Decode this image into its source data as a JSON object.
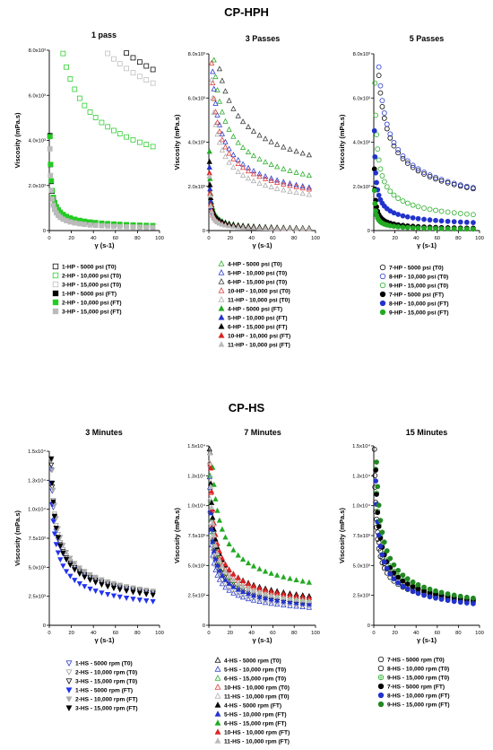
{
  "figure": {
    "sections": [
      {
        "id": "hph",
        "title": "CP-HPH"
      },
      {
        "id": "hs",
        "title": "CP-HS"
      }
    ]
  },
  "chart_data": [
    {
      "type": "scatter",
      "section": "CP-HPH",
      "title": "1 pass",
      "xlabel": "γ (s-1)",
      "ylabel": "Viscosity (mPa.s)",
      "xlim": [
        0,
        100
      ],
      "ylim": [
        0,
        8000
      ],
      "xticks": [
        0,
        20,
        40,
        60,
        80,
        100
      ],
      "xtick_labels": [
        "0",
        "20",
        "40",
        "60",
        "80",
        "100"
      ],
      "yticks": [
        0,
        2000,
        4000,
        6000,
        8000
      ],
      "ytick_labels": [
        "0",
        "2.0x10³",
        "4.0x10³",
        "6.0x10³",
        "8.0x10³"
      ],
      "grid": false,
      "legend_position": "bottom",
      "series": [
        {
          "name": "1-HP - 5000 psi (T0)",
          "marker": "square",
          "fill": "open",
          "color": "#000000",
          "A": 32000,
          "n": 0.67
        },
        {
          "name": "2-HP - 10,000 psi (T0)",
          "marker": "square",
          "fill": "open",
          "color": "#22cc22",
          "A": 20000,
          "n": 0.63
        },
        {
          "name": "3-HP - 15,000 psi (T0)",
          "marker": "square",
          "fill": "open",
          "color": "#bbbbbb",
          "A": 28000,
          "n": 0.68
        },
        {
          "name": "1-HP - 5000 psi (FT)",
          "marker": "square",
          "fill": "solid",
          "color": "#000000",
          "A": 3100,
          "n": 0.4
        },
        {
          "name": "2-HP - 10,000 psi (FT)",
          "marker": "square",
          "fill": "solid",
          "color": "#22cc22",
          "A": 3100,
          "n": 0.42
        },
        {
          "name": "3-HP - 15,000 psi (FT)",
          "marker": "square",
          "fill": "solid",
          "color": "#bbbbbb",
          "A": 2600,
          "n": 0.35
        }
      ]
    },
    {
      "type": "scatter",
      "section": "CP-HPH",
      "title": "3 Passes",
      "xlabel": "γ (s-1)",
      "ylabel": "Viscosity (mPa.s)",
      "xlim": [
        0,
        100
      ],
      "ylim": [
        0,
        8000
      ],
      "xticks": [
        0,
        20,
        40,
        60,
        80,
        100
      ],
      "xtick_labels": [
        "0",
        "20",
        "40",
        "60",
        "80",
        "100"
      ],
      "yticks": [
        0,
        2000,
        4000,
        6000,
        8000
      ],
      "ytick_labels": [
        "0",
        "2.0x10³",
        "4.0x10³",
        "6.0x10³",
        "8.0x10³"
      ],
      "grid": false,
      "legend_position": "bottom",
      "series": [
        {
          "name": "4-HP - 5000 psi (T0)",
          "marker": "triangle-up",
          "fill": "open",
          "color": "#22aa22",
          "A": 14000,
          "n": 0.62
        },
        {
          "name": "5-HP - 10,000 psi (T0)",
          "marker": "triangle-up",
          "fill": "open",
          "color": "#2233cc",
          "A": 12000,
          "n": 0.6
        },
        {
          "name": "6-HP - 15,000 psi (T0)",
          "marker": "triangle-up",
          "fill": "open",
          "color": "#333333",
          "A": 16000,
          "n": 0.66
        },
        {
          "name": "10-HP - 10,000 psi (T0)",
          "marker": "triangle-up",
          "fill": "open",
          "color": "#dd3333",
          "A": 11000,
          "n": 0.61
        },
        {
          "name": "11-HP - 10,000 psi (T0)",
          "marker": "triangle-up",
          "fill": "open",
          "color": "#aaaaaa",
          "A": 10000,
          "n": 0.6
        },
        {
          "name": "4-HP - 5000 psi (FT)",
          "marker": "triangle-up",
          "fill": "solid",
          "color": "#22aa22",
          "A": 2500,
          "n": 0.3
        },
        {
          "name": "5-HP - 10,000 psi (FT)",
          "marker": "triangle-up",
          "fill": "solid",
          "color": "#2233cc",
          "A": 2000,
          "n": 0.3
        },
        {
          "name": "6-HP - 15,000 psi (FT)",
          "marker": "triangle-up",
          "fill": "solid",
          "color": "#000000",
          "A": 2200,
          "n": 0.32
        },
        {
          "name": "10-HP - 10,000 psi (FT)",
          "marker": "triangle-up",
          "fill": "solid",
          "color": "#dd2222",
          "A": 1800,
          "n": 0.28
        },
        {
          "name": "11-HP - 10,000 psi (FT)",
          "marker": "triangle-up",
          "fill": "solid",
          "color": "#bbbbbb",
          "A": 1700,
          "n": 0.28
        }
      ]
    },
    {
      "type": "scatter",
      "section": "CP-HPH",
      "title": "5 Passes",
      "xlabel": "γ (s-1)",
      "ylabel": "Viscosity (mPa.s)",
      "xlim": [
        0,
        100
      ],
      "ylim": [
        0,
        8000
      ],
      "xticks": [
        0,
        20,
        40,
        60,
        80,
        100
      ],
      "xtick_labels": [
        "0",
        "20",
        "40",
        "60",
        "80",
        "100"
      ],
      "yticks": [
        0,
        2000,
        4000,
        6000,
        8000
      ],
      "ytick_labels": [
        "0",
        "2.0x10³",
        "4.0x10³",
        "6.0x10³",
        "8.0x10³"
      ],
      "grid": false,
      "legend_position": "bottom",
      "series": [
        {
          "name": "7-HP - 5000 psi (T0)",
          "marker": "circle",
          "fill": "open",
          "color": "#000000",
          "A": 14000,
          "n": 0.56
        },
        {
          "name": "8-HP - 10,000 psi (T0)",
          "marker": "circle",
          "fill": "open",
          "color": "#2233cc",
          "A": 15000,
          "n": 0.55
        },
        {
          "name": "9-HP - 15,000 psi (T0)",
          "marker": "circle",
          "fill": "open",
          "color": "#22aa22",
          "A": 7000,
          "n": 0.5
        },
        {
          "name": "7-HP - 5000 psi (FT)",
          "marker": "circle",
          "fill": "solid",
          "color": "#000000",
          "A": 2000,
          "n": 0.35
        },
        {
          "name": "8-HP - 10,000 psi (FT)",
          "marker": "circle",
          "fill": "solid",
          "color": "#2233cc",
          "A": 3500,
          "n": 0.5
        },
        {
          "name": "9-HP - 15,000 psi (FT)",
          "marker": "circle",
          "fill": "solid",
          "color": "#22aa22",
          "A": 1300,
          "n": 0.35
        }
      ]
    },
    {
      "type": "scatter",
      "section": "CP-HS",
      "title": "3 Minutes",
      "xlabel": "γ (s-1)",
      "ylabel": "Viscosity (mPa.s)",
      "xlim": [
        0,
        100
      ],
      "ylim": [
        0,
        15000
      ],
      "xticks": [
        0,
        20,
        40,
        60,
        80,
        100
      ],
      "xtick_labels": [
        "0",
        "20",
        "40",
        "60",
        "80",
        "100"
      ],
      "yticks": [
        0,
        2500,
        5000,
        7500,
        10000,
        12500,
        15000
      ],
      "ytick_labels": [
        "0",
        "2.5x10³",
        "5.0x10³",
        "7.5x10³",
        "1.0x10⁴",
        "1.3x10⁴",
        "1.5x10⁴"
      ],
      "grid": false,
      "legend_position": "bottom",
      "series": [
        {
          "name": "1-HS - 5000 rpm (T0)",
          "marker": "triangle-down",
          "fill": "open",
          "color": "#2233cc",
          "A": 17000,
          "n": 0.6
        },
        {
          "name": "2-HS - 10,000 rpm (T0)",
          "marker": "triangle-down",
          "fill": "open",
          "color": "#999999",
          "A": 18000,
          "n": 0.6
        },
        {
          "name": "3-HS - 15,000 rpm (T0)",
          "marker": "triangle-down",
          "fill": "open",
          "color": "#000000",
          "A": 17500,
          "n": 0.6
        },
        {
          "name": "1-HS - 5000 rpm (FT)",
          "marker": "triangle-down",
          "fill": "solid",
          "color": "#2233ee",
          "A": 16000,
          "n": 0.55
        },
        {
          "name": "2-HS - 10,000 rpm (FT)",
          "marker": "triangle-down",
          "fill": "solid",
          "color": "#aaaaaa",
          "A": 20000,
          "n": 0.58
        },
        {
          "name": "3-HS - 15,000 rpm (FT)",
          "marker": "triangle-down",
          "fill": "solid",
          "color": "#000000",
          "A": 18500,
          "n": 0.57
        }
      ]
    },
    {
      "type": "scatter",
      "section": "CP-HS",
      "title": "7 Minutes",
      "xlabel": "γ (s-1)",
      "ylabel": "Viscosity (mPa.s)",
      "xlim": [
        0,
        100
      ],
      "ylim": [
        0,
        15000
      ],
      "xticks": [
        0,
        20,
        40,
        60,
        80,
        100
      ],
      "xtick_labels": [
        "0",
        "20",
        "40",
        "60",
        "80",
        "100"
      ],
      "yticks": [
        0,
        2500,
        5000,
        7500,
        10000,
        12500,
        15000
      ],
      "ytick_labels": [
        "0",
        "2.5x10³",
        "5.0x10³",
        "7.5x10³",
        "1.0x10⁴",
        "1.3x10⁴",
        "1.5x10⁴"
      ],
      "grid": false,
      "legend_position": "bottom",
      "series": [
        {
          "name": "4-HS - 5000 rpm (T0)",
          "marker": "triangle-up",
          "fill": "open",
          "color": "#000000",
          "A": 12000,
          "n": 0.6
        },
        {
          "name": "5-HS - 10,000 rpm (T0)",
          "marker": "triangle-up",
          "fill": "open",
          "color": "#2233cc",
          "A": 10000,
          "n": 0.58
        },
        {
          "name": "6-HS - 15,000 rpm (T0)",
          "marker": "triangle-up",
          "fill": "open",
          "color": "#22aa22",
          "A": 13000,
          "n": 0.6
        },
        {
          "name": "10-HS - 10,000 rpm (T0)",
          "marker": "triangle-up",
          "fill": "open",
          "color": "#dd3333",
          "A": 14000,
          "n": 0.6
        },
        {
          "name": "11-HS - 10,000 rpm (T0)",
          "marker": "triangle-up",
          "fill": "open",
          "color": "#aaaaaa",
          "A": 11000,
          "n": 0.58
        },
        {
          "name": "4-HS - 5000 rpm (FT)",
          "marker": "triangle-up",
          "fill": "solid",
          "color": "#000000",
          "A": 15000,
          "n": 0.6
        },
        {
          "name": "5-HS - 10,000 rpm (FT)",
          "marker": "triangle-up",
          "fill": "solid",
          "color": "#2233cc",
          "A": 12000,
          "n": 0.58
        },
        {
          "name": "6-HS - 15,000 rpm (FT)",
          "marker": "triangle-up",
          "fill": "solid",
          "color": "#22aa22",
          "A": 22000,
          "n": 0.6
        },
        {
          "name": "10-HS - 10,000 rpm (FT)",
          "marker": "triangle-up",
          "fill": "solid",
          "color": "#dd2222",
          "A": 17000,
          "n": 0.56
        },
        {
          "name": "11-HS - 10,000 rpm (FT)",
          "marker": "triangle-up",
          "fill": "solid",
          "color": "#bbbbbb",
          "A": 15000,
          "n": 0.56
        }
      ]
    },
    {
      "type": "scatter",
      "section": "CP-HS",
      "title": "15 Minutes",
      "xlabel": "γ (s-1)",
      "ylabel": "Viscosity (mPa.s)",
      "xlim": [
        0,
        100
      ],
      "ylim": [
        0,
        15000
      ],
      "xticks": [
        0,
        20,
        40,
        60,
        80,
        100
      ],
      "xtick_labels": [
        "0",
        "20",
        "40",
        "60",
        "80",
        "100"
      ],
      "yticks": [
        0,
        2500,
        5000,
        7500,
        10000,
        12500,
        15000
      ],
      "ytick_labels": [
        "0",
        "2.5x10³",
        "5.0x10³",
        "7.5x10³",
        "1.0x10⁴",
        "1.3x10⁴",
        "1.5x10⁴"
      ],
      "grid": false,
      "legend_position": "bottom",
      "series": [
        {
          "name": "7-HS - 5000 rpm (T0)",
          "marker": "circle",
          "fill": "open",
          "color": "#000000",
          "A": 12000,
          "n": 0.6
        },
        {
          "name": "8-HS - 10,000 rpm (T0)",
          "marker": "circle",
          "fill": "open",
          "color": "#000000",
          "A": 13000,
          "n": 0.6
        },
        {
          "name": "9-HS - 15,000 rpm (T0)",
          "marker": "circle-plus",
          "fill": "open",
          "color": "#22aa22",
          "A": 17000,
          "n": 0.55
        },
        {
          "name": "7-HS - 5000 rpm (FT)",
          "marker": "circle",
          "fill": "solid",
          "color": "#000000",
          "A": 17000,
          "n": 0.54
        },
        {
          "name": "8-HS - 10,000 rpm (FT)",
          "marker": "circle",
          "fill": "solid",
          "color": "#2233cc",
          "A": 16000,
          "n": 0.52
        },
        {
          "name": "9-HS - 15,000 rpm (FT)",
          "marker": "circle",
          "fill": "solid",
          "color": "#228822",
          "A": 22000,
          "n": 0.5
        }
      ]
    }
  ]
}
